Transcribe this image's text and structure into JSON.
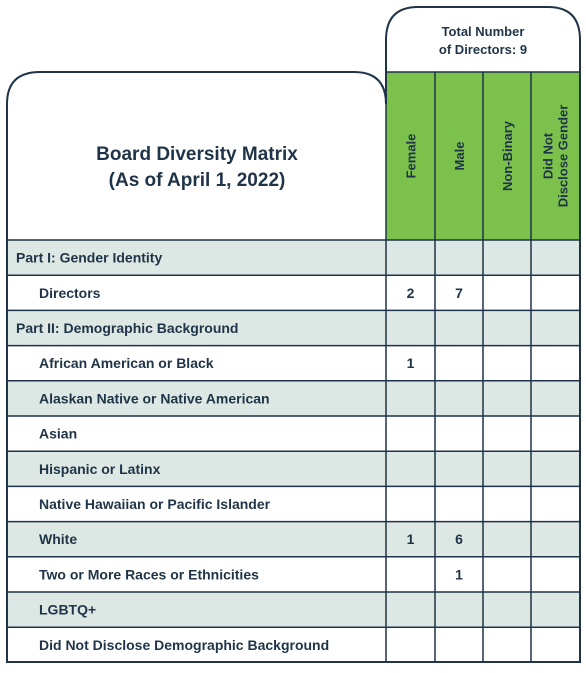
{
  "matrix": {
    "title_line1": "Board Diversity Matrix",
    "title_line2": "(As of April 1, 2022)",
    "total_line1": "Total Number",
    "total_line2": "of Directors: 9",
    "columns": [
      {
        "label": "Female",
        "green": true
      },
      {
        "label": "Male",
        "green": true
      },
      {
        "label": "Non-Binary",
        "green": true
      },
      {
        "label": "Did Not",
        "label2": "Disclose Gender",
        "green": true
      }
    ],
    "rows": [
      {
        "label": "Part I: Gender Identity",
        "section": true,
        "shaded": true,
        "values": [
          "",
          "",
          "",
          ""
        ]
      },
      {
        "label": "Directors",
        "section": false,
        "shaded": false,
        "values": [
          "2",
          "7",
          "",
          ""
        ]
      },
      {
        "label": "Part II: Demographic Background",
        "section": true,
        "shaded": true,
        "values": [
          "",
          "",
          "",
          ""
        ]
      },
      {
        "label": "African American or Black",
        "section": false,
        "shaded": false,
        "values": [
          "1",
          "",
          "",
          ""
        ]
      },
      {
        "label": "Alaskan Native or Native American",
        "section": false,
        "shaded": true,
        "values": [
          "",
          "",
          "",
          ""
        ]
      },
      {
        "label": "Asian",
        "section": false,
        "shaded": false,
        "values": [
          "",
          "",
          "",
          ""
        ]
      },
      {
        "label": "Hispanic or Latinx",
        "section": false,
        "shaded": true,
        "values": [
          "",
          "",
          "",
          ""
        ]
      },
      {
        "label": "Native Hawaiian or Pacific Islander",
        "section": false,
        "shaded": false,
        "values": [
          "",
          "",
          "",
          ""
        ]
      },
      {
        "label": "White",
        "section": false,
        "shaded": true,
        "values": [
          "1",
          "6",
          "",
          ""
        ]
      },
      {
        "label": "Two or More Races or Ethnicities",
        "section": false,
        "shaded": false,
        "values": [
          "",
          "1",
          "",
          ""
        ]
      },
      {
        "label": "LGBTQ+",
        "section": false,
        "shaded": true,
        "values": [
          "",
          "",
          "",
          ""
        ]
      },
      {
        "label": "Did Not Disclose Demographic Background",
        "section": false,
        "shaded": false,
        "values": [
          "",
          "",
          "",
          ""
        ]
      }
    ],
    "colors": {
      "border": "#1f3448",
      "green": "#7cc14b",
      "shade": "#dde7e3",
      "text": "#1f3448"
    }
  }
}
